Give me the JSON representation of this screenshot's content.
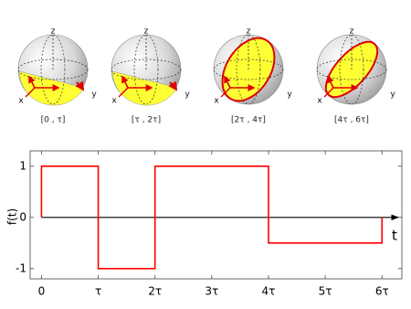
{
  "spheres": [
    {
      "caption": "[0 , τ]",
      "z_label": "z",
      "x_label": "x",
      "y_label": "y"
    },
    {
      "caption": "[τ , 2τ]",
      "z_label": "z",
      "x_label": "x",
      "y_label": "y"
    },
    {
      "caption": "[2τ , 4τ]",
      "z_label": "z",
      "x_label": "x",
      "y_label": "y"
    },
    {
      "caption": "[4τ , 6τ]",
      "z_label": "z",
      "x_label": "x",
      "y_label": "y"
    }
  ],
  "chart_data": {
    "type": "line",
    "step": true,
    "ylabel": "f(t)",
    "xlabel": "t",
    "series": [
      {
        "color": "#ff0000",
        "x": [
          0,
          0,
          1,
          1,
          2,
          2,
          4,
          4,
          6,
          6
        ],
        "values": [
          0,
          1,
          1,
          -1,
          -1,
          1,
          1,
          -0.5,
          -0.5,
          0
        ]
      }
    ],
    "xlim": [
      -0.2,
      6.35
    ],
    "ylim": [
      -1.2,
      1.3
    ],
    "xticks": [
      0,
      {
        "value": 1,
        "label": "τ"
      },
      {
        "value": 2,
        "label": "2τ"
      },
      {
        "value": 3,
        "label": "3τ"
      },
      {
        "value": 4,
        "label": "4τ"
      },
      {
        "value": 5,
        "label": "5τ"
      },
      {
        "value": 6,
        "label": "6τ"
      }
    ],
    "yticks": [
      -1,
      0,
      1
    ]
  }
}
